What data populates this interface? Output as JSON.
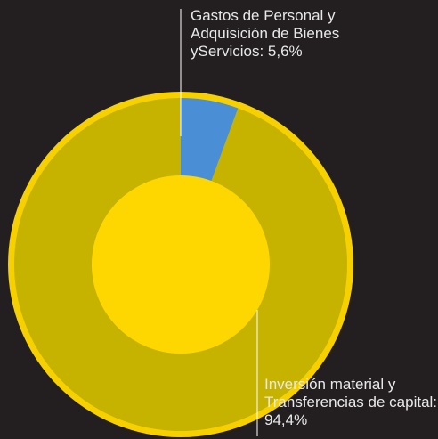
{
  "chart_data": {
    "type": "pie",
    "categories": [
      "Gastos de Personal y Adquisición de Bienes yServicios",
      "Inversión material y Transferencias de capital"
    ],
    "values": [
      5.6,
      94.4
    ],
    "value_labels": [
      "Gastos de Personal y Adquisición de Bienes yServicios: 5,6%",
      "Inversión material y Transferencias de capital: 94,4%"
    ],
    "colors": [
      "#4a8fd6",
      "#c5b300"
    ],
    "donut": true
  }
}
